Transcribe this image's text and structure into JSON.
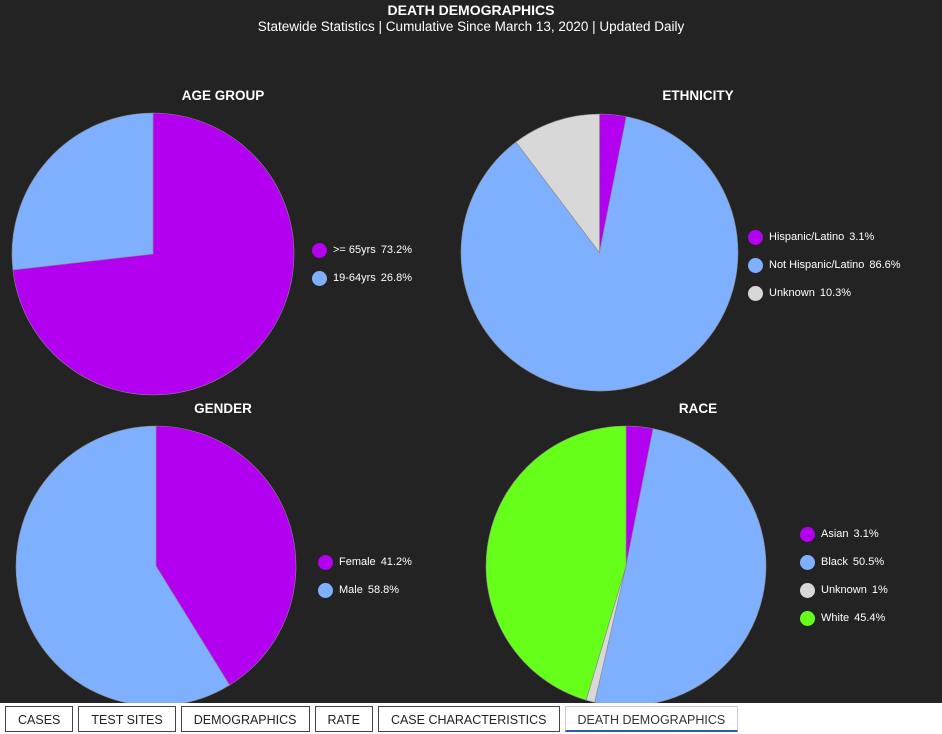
{
  "header": {
    "title": "DEATH DEMOGRAPHICS",
    "subtitle": "Statewide Statistics  |  Cumulative Since March 13, 2020  |  Updated Daily"
  },
  "colors": {
    "purple": "#b300f0",
    "blue": "#7fb0ff",
    "gray": "#d8d8d8",
    "green": "#66ff1a"
  },
  "chart_data": [
    {
      "type": "pie",
      "title": "AGE GROUP",
      "labels": [
        ">= 65yrs",
        "19-64yrs"
      ],
      "values": [
        73.2,
        26.8
      ],
      "value_labels": [
        "73.2%",
        "26.8%"
      ],
      "colors": [
        "#b300f0",
        "#7fb0ff"
      ]
    },
    {
      "type": "pie",
      "title": "ETHNICITY",
      "labels": [
        "Hispanic/Latino",
        "Not Hispanic/Latino",
        "Unknown"
      ],
      "values": [
        3.1,
        86.6,
        10.3
      ],
      "value_labels": [
        "3.1%",
        "86.6%",
        "10.3%"
      ],
      "colors": [
        "#b300f0",
        "#7fb0ff",
        "#d8d8d8"
      ]
    },
    {
      "type": "pie",
      "title": "GENDER",
      "labels": [
        "Female",
        "Male"
      ],
      "values": [
        41.2,
        58.8
      ],
      "value_labels": [
        "41.2%",
        "58.8%"
      ],
      "colors": [
        "#b300f0",
        "#7fb0ff"
      ]
    },
    {
      "type": "pie",
      "title": "RACE",
      "labels": [
        "Asian",
        "Black",
        "Unknown",
        "White"
      ],
      "values": [
        3.1,
        50.5,
        1,
        45.4
      ],
      "value_labels": [
        "3.1%",
        "50.5%",
        "1%",
        "45.4%"
      ],
      "colors": [
        "#b300f0",
        "#7fb0ff",
        "#d8d8d8",
        "#66ff1a"
      ]
    }
  ],
  "tabs": [
    {
      "label": "CASES"
    },
    {
      "label": "TEST SITES"
    },
    {
      "label": "DEMOGRAPHICS"
    },
    {
      "label": "RATE"
    },
    {
      "label": "CASE CHARACTERISTICS"
    },
    {
      "label": "DEATH DEMOGRAPHICS",
      "active": true
    }
  ]
}
